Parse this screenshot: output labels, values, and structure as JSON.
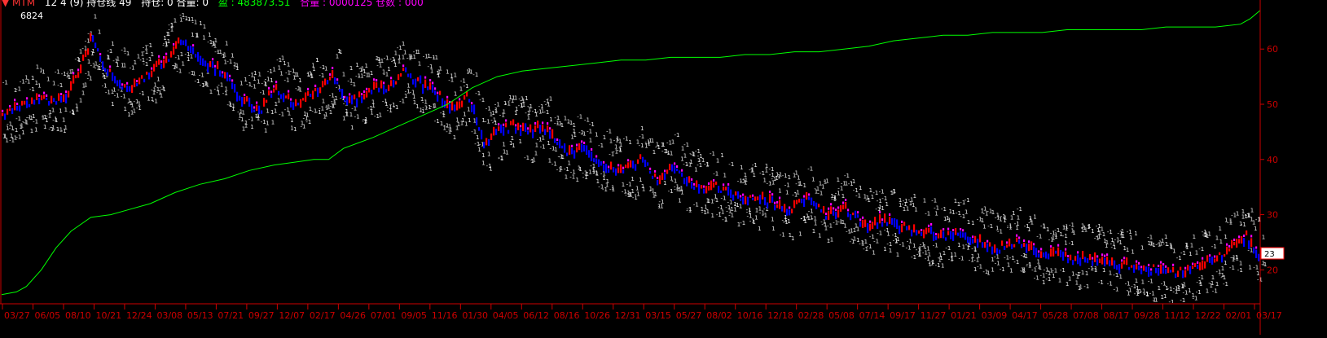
{
  "header": {
    "prefix": "▼ MTM",
    "parts": [
      {
        "text": "12 4  (9) 持仓线 49",
        "color": "#ffffff"
      },
      {
        "text": "持仓: 0  合量: 0",
        "color": "#ffffff"
      },
      {
        "text": "盈 : 483873.51",
        "color": "#00ff00"
      },
      {
        "text": "合量 : 0000125  仓数 : 000",
        "color": "#ff00ff"
      }
    ]
  },
  "colors": {
    "background": "#000000",
    "equity": "#00ff00",
    "up_bar": "#ff0000",
    "down_bar": "#0000ff",
    "highlight": "#ff00ff",
    "label_cloud": "#e8e8e8",
    "axis": "#cc0000",
    "price_tag_border": "#ff0000"
  },
  "chart_data": {
    "type": "line",
    "title": "",
    "annotations": {
      "high_label": "6824",
      "last_price_tag": "23"
    },
    "ylim": [
      14,
      68
    ],
    "y_ticks": [
      {
        "value": 20,
        "label": "20"
      },
      {
        "value": 30,
        "label": "30"
      },
      {
        "value": 40,
        "label": "40"
      },
      {
        "value": 50,
        "label": "50"
      },
      {
        "value": 60,
        "label": "60"
      }
    ],
    "x_ticks": [
      "03/27",
      "06/05",
      "08/10",
      "10/21",
      "12/24",
      "03/08",
      "05/13",
      "07/21",
      "09/27",
      "12/07",
      "02/17",
      "04/26",
      "07/01",
      "09/05",
      "11/16",
      "01/30",
      "04/05",
      "06/12",
      "08/16",
      "10/26",
      "12/31",
      "03/15",
      "05/27",
      "08/02",
      "10/16",
      "12/18",
      "02/28",
      "05/08",
      "07/14",
      "09/17",
      "11/27",
      "01/21",
      "03/09",
      "04/17",
      "05/28",
      "07/08",
      "08/17",
      "09/28",
      "11/12",
      "12/22",
      "02/01",
      "03/17"
    ],
    "series": [
      {
        "kind": "price",
        "x": [
          0,
          8,
          16,
          24,
          30,
          36,
          42,
          50,
          58,
          66,
          72,
          80,
          88,
          96,
          104,
          110,
          118,
          126,
          134,
          138,
          144,
          150,
          156,
          162,
          168,
          175,
          182,
          188,
          194,
          200,
          206,
          212,
          218,
          222,
          228,
          234,
          240,
          246,
          252,
          258,
          264,
          270,
          276,
          282,
          288,
          294,
          300,
          305,
          312,
          318,
          324,
          332,
          340,
          348,
          356,
          362,
          370,
          378,
          386,
          394,
          402,
          410,
          418,
          424,
          430,
          436,
          442,
          448,
          454,
          460,
          466,
          472,
          478,
          484,
          490,
          496,
          502,
          506
        ],
        "y": [
          48,
          50,
          51,
          50.5,
          55,
          62,
          56,
          53,
          55,
          58,
          62,
          58,
          56,
          51,
          49,
          53,
          50,
          52,
          55,
          51,
          51,
          53,
          53,
          56,
          54,
          52,
          49,
          52,
          43,
          45,
          46,
          45,
          46,
          44,
          41,
          42,
          40,
          38,
          38,
          40,
          36,
          39,
          36,
          35,
          35,
          34,
          33,
          33,
          32,
          31,
          33,
          30,
          31,
          28,
          29,
          28,
          27,
          26,
          27,
          25,
          24,
          25,
          23,
          23,
          22,
          22,
          22,
          21,
          21,
          20,
          20,
          19.5,
          20,
          21,
          22,
          24,
          26,
          23
        ]
      },
      {
        "kind": "equity",
        "x": [
          0,
          6,
          10,
          16,
          22,
          28,
          36,
          44,
          52,
          60,
          70,
          80,
          90,
          100,
          110,
          118,
          126,
          132,
          138,
          144,
          150,
          160,
          170,
          180,
          190,
          200,
          210,
          220,
          230,
          240,
          250,
          260,
          270,
          280,
          290,
          300,
          310,
          320,
          330,
          340,
          350,
          360,
          370,
          380,
          390,
          400,
          410,
          420,
          430,
          440,
          450,
          460,
          470,
          480,
          490,
          500,
          504,
          508
        ],
        "y": [
          15.5,
          16,
          17,
          20,
          24,
          27,
          29.5,
          30,
          31,
          32,
          34,
          35.5,
          36.5,
          38,
          39,
          39.5,
          40,
          40,
          42,
          43,
          44,
          46,
          48,
          50,
          53,
          55,
          56,
          56.5,
          57,
          57.5,
          58,
          58,
          58.5,
          58.5,
          58.5,
          59,
          59,
          59.5,
          59.5,
          60,
          60.5,
          61.5,
          62,
          62.5,
          62.5,
          63,
          63,
          63,
          63.5,
          63.5,
          63.5,
          63.5,
          64,
          64,
          64,
          64.5,
          65.5,
          67
        ]
      }
    ]
  }
}
